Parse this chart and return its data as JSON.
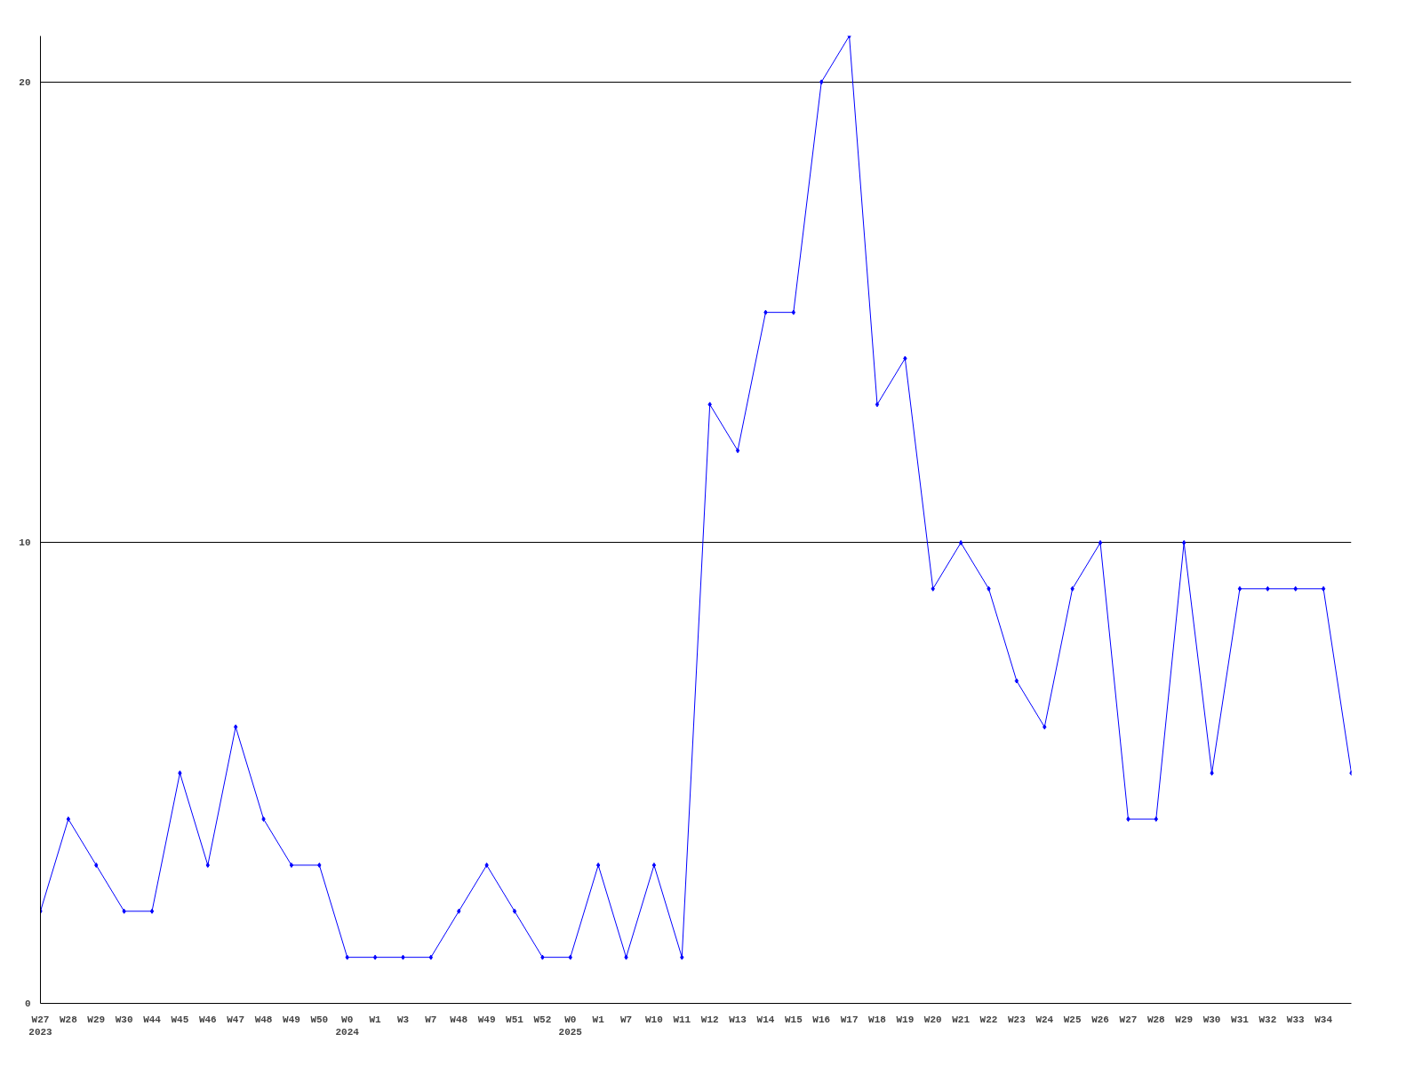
{
  "chart_data": {
    "type": "line",
    "categories": [
      "W27\n2023",
      "W28",
      "W29",
      "W30",
      "W44",
      "W45",
      "W46",
      "W47",
      "W48",
      "W49",
      "W50",
      "W0\n2024",
      "W1",
      "W3",
      "W7",
      "W48",
      "W49",
      "W51",
      "W52",
      "W0\n2025",
      "W1",
      "W7",
      "W10",
      "W11",
      "W12",
      "W13",
      "W14",
      "W15",
      "W16",
      "W17",
      "W18",
      "W19",
      "W20",
      "W21",
      "W22",
      "W23",
      "W24",
      "W25",
      "W26",
      "W27",
      "W28",
      "W29",
      "W30",
      "W31",
      "W32",
      "W33",
      "W34",
      null
    ],
    "series": [
      {
        "color": "#0000ff",
        "values": [
          2,
          4,
          3,
          2,
          2,
          5,
          3,
          6,
          4,
          3,
          3,
          1,
          1,
          1,
          1,
          2,
          3,
          2,
          1,
          1,
          3,
          1,
          3,
          1,
          13,
          12,
          15,
          15,
          20,
          21,
          13,
          14,
          9,
          10,
          9,
          7,
          6,
          9,
          10,
          4,
          4,
          10,
          5,
          9,
          9,
          9,
          9,
          5
        ]
      }
    ],
    "ylim": [
      0,
      21
    ],
    "yticks": [
      0,
      10,
      20
    ],
    "grid": "y",
    "marker": "diamond",
    "line_style": "solid"
  }
}
